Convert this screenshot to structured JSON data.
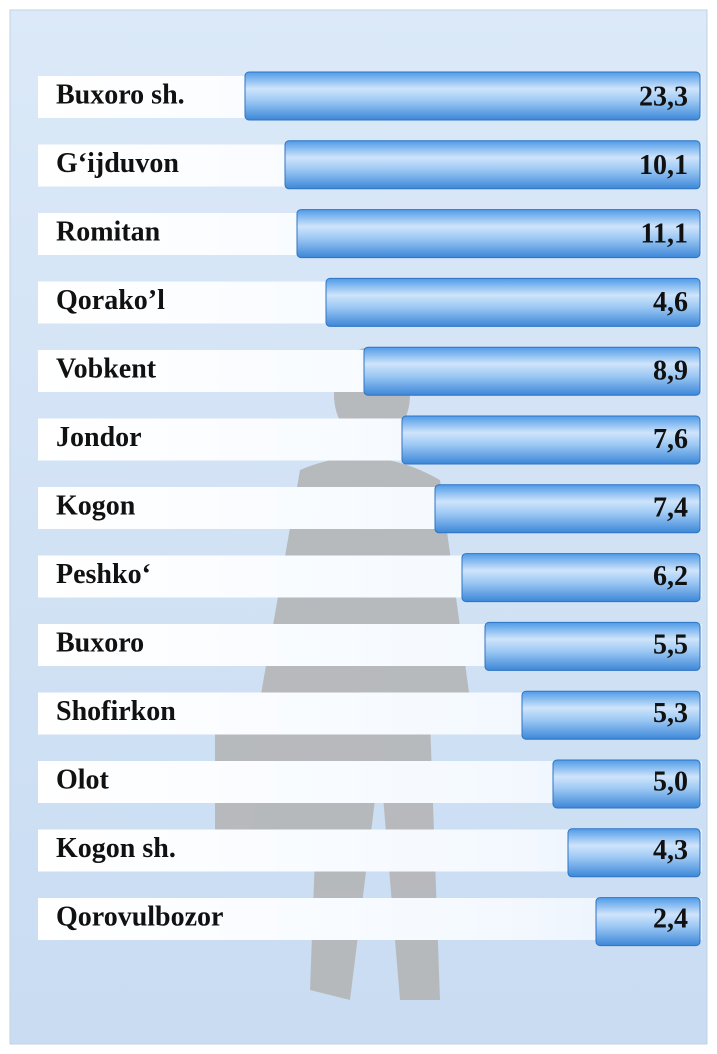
{
  "rows": [
    {
      "label": "Buxoro sh.",
      "value": "23,3"
    },
    {
      "label": "G‘ijduvon",
      "value": "10,1"
    },
    {
      "label": "Romitan",
      "value": "11,1"
    },
    {
      "label": "Qorako’l",
      "value": "4,6"
    },
    {
      "label": "Vobkent",
      "value": "8,9"
    },
    {
      "label": "Jondor",
      "value": "7,6"
    },
    {
      "label": "Kogon",
      "value": "7,4"
    },
    {
      "label": "Peshko‘",
      "value": "6,2"
    },
    {
      "label": "Buxoro",
      "value": "5,5"
    },
    {
      "label": "Shofirkon",
      "value": "5,3"
    },
    {
      "label": "Olot",
      "value": "5,0"
    },
    {
      "label": "Kogon sh.",
      "value": "4,3"
    },
    {
      "label": "Qorovulbozor",
      "value": "2,4"
    }
  ]
}
